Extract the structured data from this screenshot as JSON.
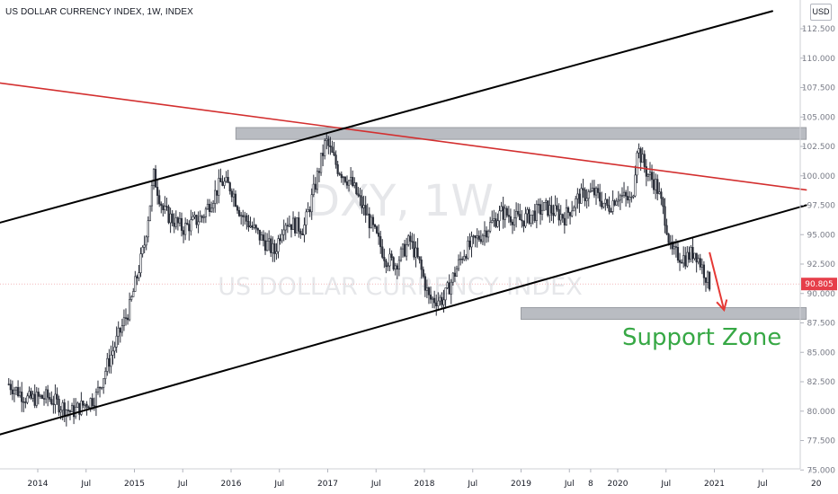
{
  "header": {
    "title": "US DOLLAR CURRENCY INDEX, 1W, INDEX",
    "currency_badge": "USD"
  },
  "watermark": {
    "symbol": "DXY, 1W",
    "description": "US DOLLAR CURRENCY INDEX"
  },
  "last_price": "90.805",
  "annotation": {
    "support_label": "Support Zone"
  },
  "colors": {
    "background": "#ffffff",
    "candle": "#2a2e39",
    "resistance_trendline": "#d32f2f",
    "channel": "#000000",
    "zone_fill": "#b9bcc2",
    "price_label_bg": "#e63e4a",
    "support_text": "#37a845",
    "arrow": "#e53935"
  },
  "chart_data": {
    "type": "candlestick",
    "interval": "1W",
    "x_axis": {
      "range": [
        "2013-09",
        "2021-12"
      ],
      "tick_labels": [
        "2014",
        "Jul",
        "2015",
        "Jul",
        "2016",
        "Jul",
        "2017",
        "Jul",
        "2018",
        "Jul",
        "2019",
        "Jul",
        "8",
        "2020",
        "Jul",
        "2021",
        "Jul",
        "20"
      ],
      "tick_dates": [
        2014.0,
        2014.5,
        2015.0,
        2015.5,
        2016.0,
        2016.5,
        2017.0,
        2017.5,
        2018.0,
        2018.5,
        2019.0,
        2019.5,
        2019.72,
        2020.0,
        2020.5,
        2021.0,
        2021.5,
        2022.0
      ]
    },
    "y_axis": {
      "position": "right",
      "range": [
        75.0,
        114.0
      ],
      "tick_labels": [
        "112.500",
        "110.000",
        "107.500",
        "105.000",
        "102.500",
        "100.000",
        "97.500",
        "95.000",
        "92.500",
        "90.000",
        "87.500",
        "85.000",
        "82.500",
        "80.000",
        "77.500",
        "75.000"
      ],
      "tick_values": [
        112.5,
        110.0,
        107.5,
        105.0,
        102.5,
        100.0,
        97.5,
        95.0,
        92.5,
        90.0,
        87.5,
        85.0,
        82.5,
        80.0,
        77.5,
        75.0
      ]
    },
    "series": [
      {
        "ohlc_anchors": [
          [
            2013.7,
            82.3
          ],
          [
            2013.9,
            81.0
          ],
          [
            2014.1,
            81.2
          ],
          [
            2014.35,
            79.9
          ],
          [
            2014.45,
            80.4
          ],
          [
            2014.6,
            81.2
          ],
          [
            2014.75,
            84.6
          ],
          [
            2014.95,
            88.8
          ],
          [
            2015.1,
            94.0
          ],
          [
            2015.2,
            100.0
          ],
          [
            2015.3,
            97.0
          ],
          [
            2015.5,
            95.5
          ],
          [
            2015.7,
            96.5
          ],
          [
            2015.9,
            99.5
          ],
          [
            2016.0,
            99.0
          ],
          [
            2016.1,
            96.8
          ],
          [
            2016.3,
            94.8
          ],
          [
            2016.45,
            93.5
          ],
          [
            2016.55,
            96.2
          ],
          [
            2016.75,
            95.5
          ],
          [
            2016.85,
            98.5
          ],
          [
            2016.98,
            103.0
          ],
          [
            2017.1,
            100.7
          ],
          [
            2017.25,
            99.3
          ],
          [
            2017.45,
            95.8
          ],
          [
            2017.6,
            93.0
          ],
          [
            2017.7,
            92.5
          ],
          [
            2017.85,
            94.5
          ],
          [
            2017.95,
            92.5
          ],
          [
            2018.05,
            89.5
          ],
          [
            2018.2,
            89.5
          ],
          [
            2018.4,
            93.4
          ],
          [
            2018.6,
            95.1
          ],
          [
            2018.8,
            96.9
          ],
          [
            2019.0,
            96.2
          ],
          [
            2019.25,
            97.3
          ],
          [
            2019.45,
            96.5
          ],
          [
            2019.6,
            98.2
          ],
          [
            2019.75,
            98.6
          ],
          [
            2019.9,
            97.3
          ],
          [
            2020.0,
            98.4
          ],
          [
            2020.15,
            97.8
          ],
          [
            2020.2,
            102.5
          ],
          [
            2020.3,
            100.3
          ],
          [
            2020.4,
            99.2
          ],
          [
            2020.5,
            96.1
          ],
          [
            2020.55,
            93.5
          ],
          [
            2020.7,
            93.0
          ],
          [
            2020.8,
            93.6
          ],
          [
            2020.95,
            90.8
          ]
        ]
      }
    ],
    "drawings": {
      "resistance_trendline": {
        "from": [
          "2013.6",
          107.9
        ],
        "to": [
          "2021.95",
          98.8
        ]
      },
      "channel_upper": {
        "from": [
          "2013.6",
          96.0
        ],
        "to": [
          "2021.6",
          114.0
        ]
      },
      "channel_lower": {
        "from": [
          "2013.6",
          78.0
        ],
        "to": [
          "2021.95",
          97.5
        ]
      },
      "resistance_zone": {
        "x": [
          "2016.05",
          "2021.95"
        ],
        "y": [
          103.1,
          104.1
        ]
      },
      "support_zone": {
        "x": [
          "2019.0",
          "2021.95"
        ],
        "y": [
          87.8,
          88.8
        ]
      },
      "projection_arrow": {
        "from": [
          "2020.95",
          93.5
        ],
        "to": [
          "2021.1",
          88.6
        ]
      }
    },
    "last_value": 90.805
  }
}
